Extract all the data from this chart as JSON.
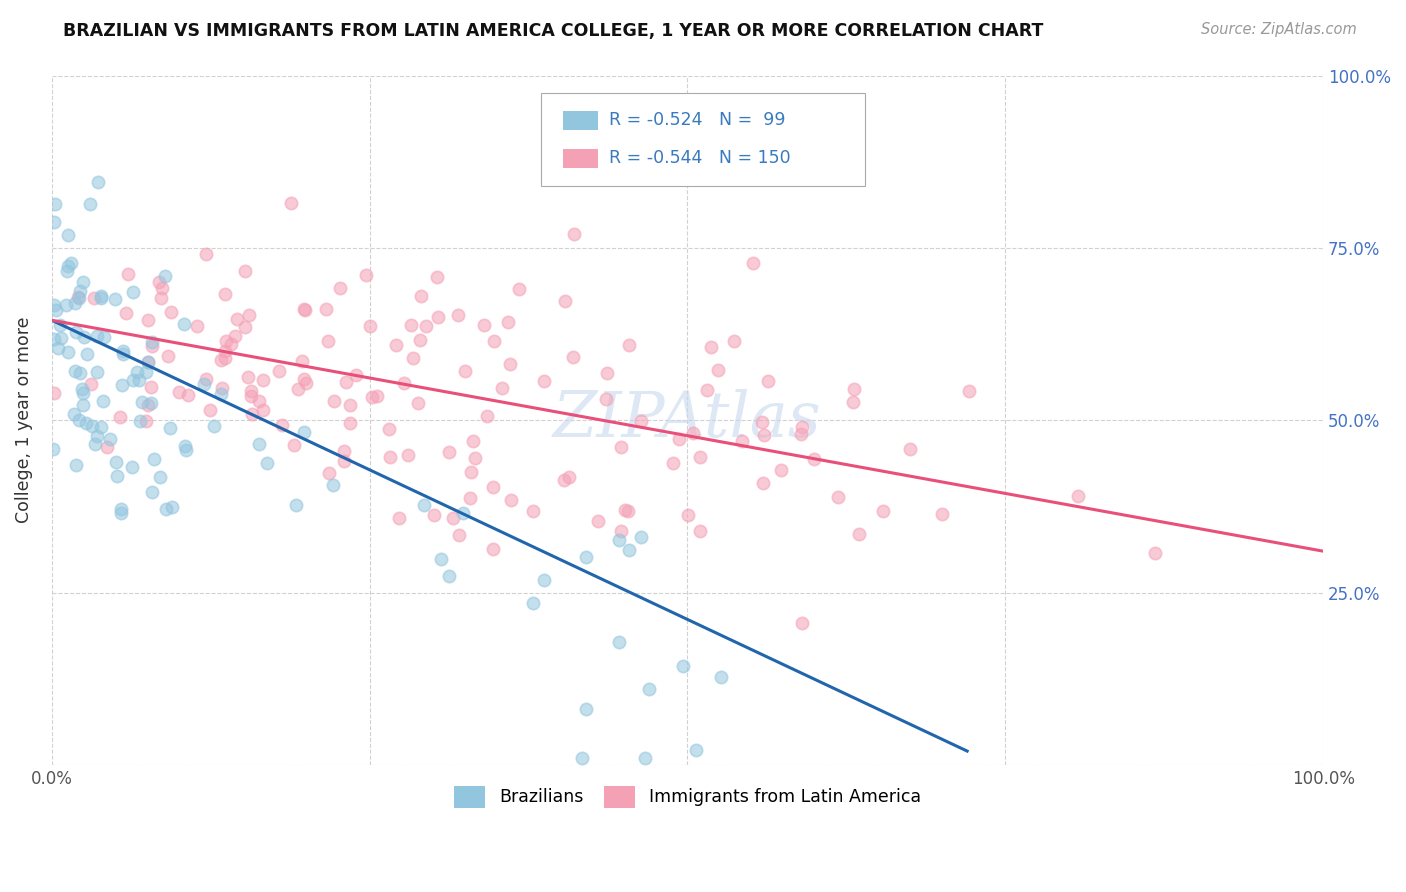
{
  "title": "BRAZILIAN VS IMMIGRANTS FROM LATIN AMERICA COLLEGE, 1 YEAR OR MORE CORRELATION CHART",
  "source_text": "Source: ZipAtlas.com",
  "ylabel": "College, 1 year or more",
  "xlim": [
    0.0,
    1.0
  ],
  "ylim": [
    0.0,
    1.0
  ],
  "color_blue": "#92c5de",
  "color_pink": "#f4a0b5",
  "line_color_blue": "#2166ac",
  "line_color_pink": "#e8507a",
  "background_color": "#ffffff",
  "grid_color": "#cccccc",
  "watermark_text": "ZIPAtlas",
  "blue_line": {
    "x0": 0.0,
    "y0": 0.645,
    "x1": 0.72,
    "y1": 0.02
  },
  "pink_line": {
    "x0": 0.0,
    "y0": 0.645,
    "x1": 1.0,
    "y1": 0.31
  },
  "legend_items": [
    {
      "color": "#92c5de",
      "text_r": "R = -0.524",
      "text_n": "N =  99"
    },
    {
      "color": "#f4a0b5",
      "text_r": "R = -0.544",
      "text_n": "N = 150"
    }
  ]
}
